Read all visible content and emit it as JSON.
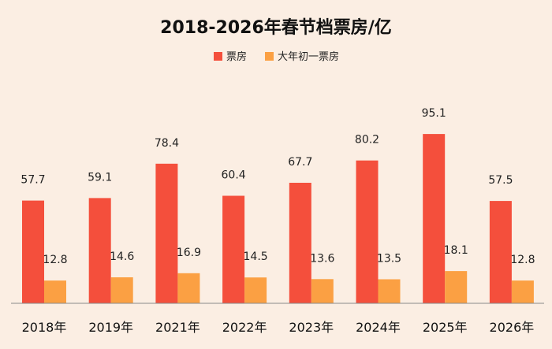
{
  "chart_data": {
    "type": "bar",
    "title": "2018-2026年春节档票房/亿",
    "categories": [
      "2018年",
      "2019年",
      "2021年",
      "2022年",
      "2023年",
      "2024年",
      "2025年",
      "2026年"
    ],
    "series": [
      {
        "name": "票房",
        "color": "#f44f3c",
        "values": [
          57.7,
          59.1,
          78.4,
          60.4,
          67.7,
          80.2,
          95.1,
          57.5
        ]
      },
      {
        "name": "大年初一票房",
        "color": "#fba043",
        "values": [
          12.8,
          14.6,
          16.9,
          14.5,
          13.6,
          13.5,
          18.1,
          12.8
        ]
      }
    ],
    "ylim": [
      0,
      100
    ],
    "xlabel": "",
    "ylabel": "",
    "grid": false,
    "legend_position": "top-center"
  }
}
